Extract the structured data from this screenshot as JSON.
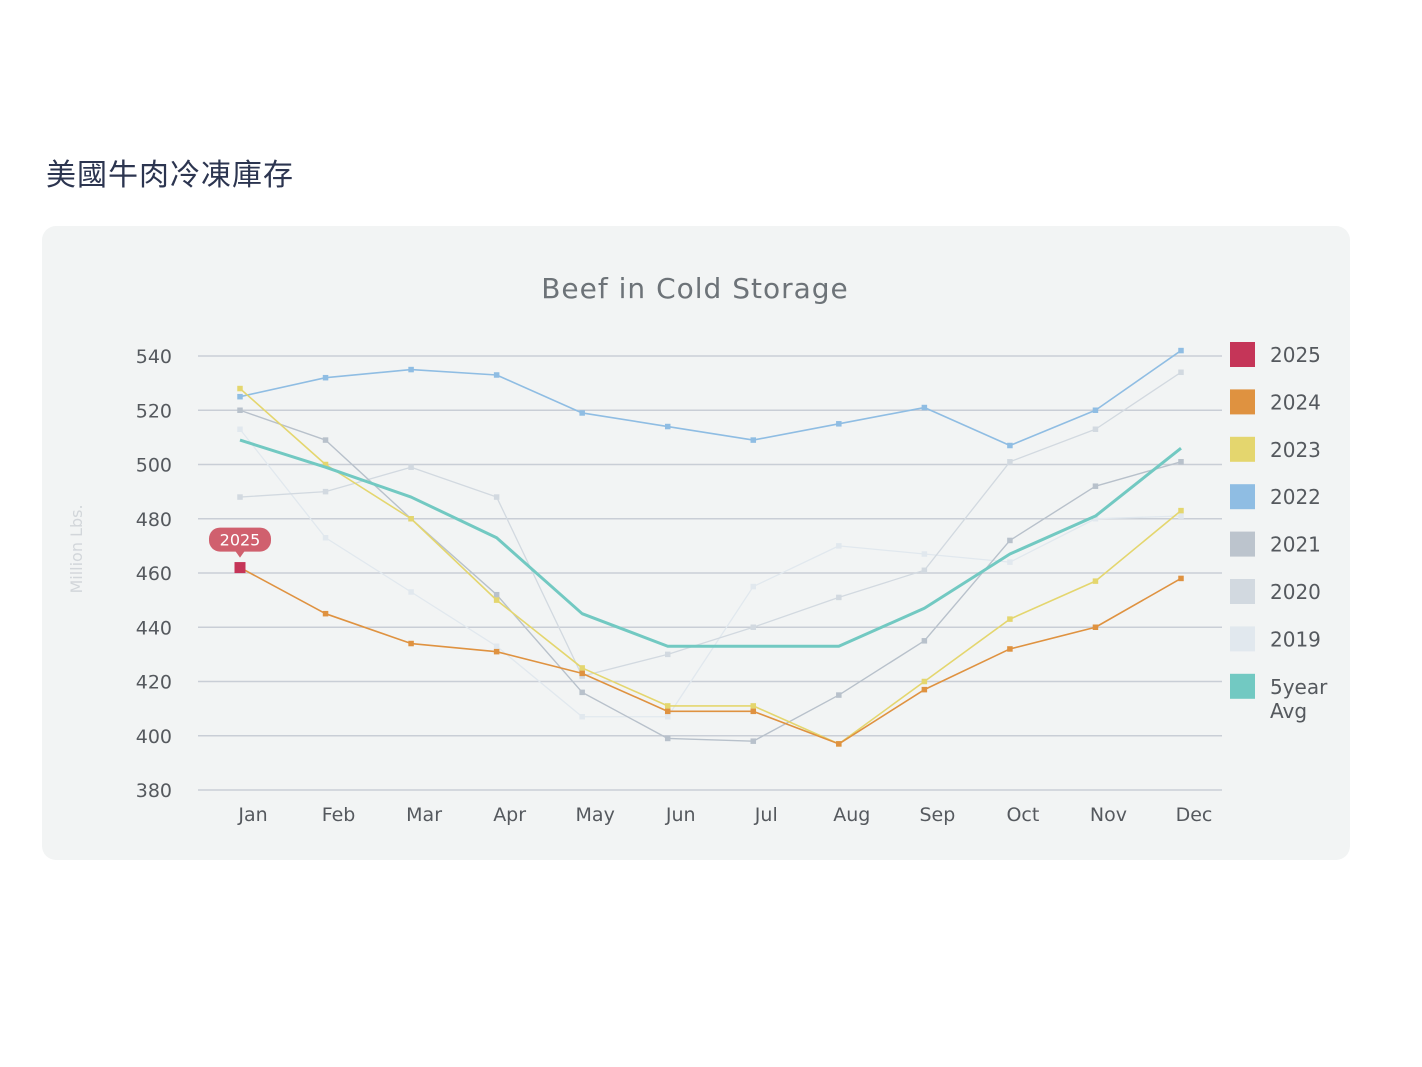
{
  "page": {
    "heading": "美國牛肉冷凍庫存"
  },
  "chart_data": {
    "type": "line",
    "title": "Beef in Cold Storage",
    "xlabel": "",
    "ylabel": "Million Lbs.",
    "categories": [
      "Jan",
      "Feb",
      "Mar",
      "Apr",
      "May",
      "Jun",
      "Jul",
      "Aug",
      "Sep",
      "Oct",
      "Nov",
      "Dec"
    ],
    "ylim": [
      380,
      540
    ],
    "yticks": [
      380,
      400,
      420,
      440,
      460,
      480,
      500,
      520,
      540
    ],
    "grid": true,
    "legend_position": "right",
    "callout": {
      "series": "2025",
      "label": "2025",
      "color": "#d0606e"
    },
    "series": [
      {
        "name": "2019",
        "color": "#e1e8ee",
        "width": 1.3,
        "values": [
          513,
          473,
          453,
          433,
          407,
          407,
          455,
          470,
          467,
          464,
          480,
          481
        ]
      },
      {
        "name": "2020",
        "color": "#d2d9e0",
        "width": 1.3,
        "values": [
          488,
          490,
          499,
          488,
          422,
          430,
          440,
          451,
          461,
          501,
          513,
          534
        ]
      },
      {
        "name": "2021",
        "color": "#b8c1cb",
        "width": 1.4,
        "values": [
          520,
          509,
          480,
          452,
          416,
          399,
          398,
          415,
          435,
          472,
          492,
          501
        ]
      },
      {
        "name": "2022",
        "color": "#8fbde3",
        "width": 1.6,
        "values": [
          525,
          532,
          535,
          533,
          519,
          514,
          509,
          515,
          521,
          507,
          520,
          542
        ]
      },
      {
        "name": "2023",
        "color": "#e4d66e",
        "width": 1.6,
        "values": [
          528,
          500,
          480,
          450,
          425,
          411,
          411,
          397,
          420,
          443,
          457,
          483
        ]
      },
      {
        "name": "2024",
        "color": "#df9240",
        "width": 1.6,
        "values": [
          462,
          445,
          434,
          431,
          423,
          409,
          409,
          397,
          417,
          432,
          440,
          458
        ]
      },
      {
        "name": "2025",
        "color": "#c53558",
        "width": 2,
        "values": [
          462,
          null,
          null,
          null,
          null,
          null,
          null,
          null,
          null,
          null,
          null,
          null
        ]
      },
      {
        "name": "5year Avg",
        "color": "#72c9c2",
        "width": 3,
        "markers": false,
        "values": [
          509,
          499,
          488,
          473,
          445,
          433,
          433,
          433,
          447,
          467,
          481,
          506
        ]
      }
    ],
    "legend": [
      {
        "label": "2025",
        "color": "#c53558"
      },
      {
        "label": "2024",
        "color": "#df9240"
      },
      {
        "label": "2023",
        "color": "#e4d66e"
      },
      {
        "label": "2022",
        "color": "#8fbde3"
      },
      {
        "label": "2021",
        "color": "#bcc4cd"
      },
      {
        "label": "2020",
        "color": "#d2d9e0"
      },
      {
        "label": "2019",
        "color": "#e1e8ee"
      },
      {
        "label": "5year Avg",
        "color": "#72c9c2"
      }
    ]
  }
}
